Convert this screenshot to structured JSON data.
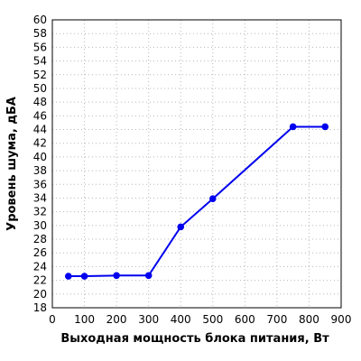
{
  "chart_data": {
    "type": "line",
    "title": "",
    "xlabel": "Выходная мощность блока питания, Вт",
    "ylabel": "Уровень шума, дБА",
    "xlim": [
      0,
      900
    ],
    "ylim": [
      18,
      60
    ],
    "x_ticks": [
      0,
      100,
      200,
      300,
      400,
      500,
      600,
      700,
      800,
      900
    ],
    "y_ticks": [
      18,
      20,
      22,
      24,
      26,
      28,
      30,
      32,
      34,
      36,
      38,
      40,
      42,
      44,
      46,
      48,
      50,
      52,
      54,
      56,
      58,
      60
    ],
    "grid": true,
    "series": [
      {
        "x": [
          50,
          100,
          200,
          300,
          400,
          500,
          750,
          850
        ],
        "values": [
          22.6,
          22.6,
          22.7,
          22.7,
          29.8,
          33.9,
          44.4,
          44.4
        ],
        "color": "#0000ee"
      }
    ]
  }
}
